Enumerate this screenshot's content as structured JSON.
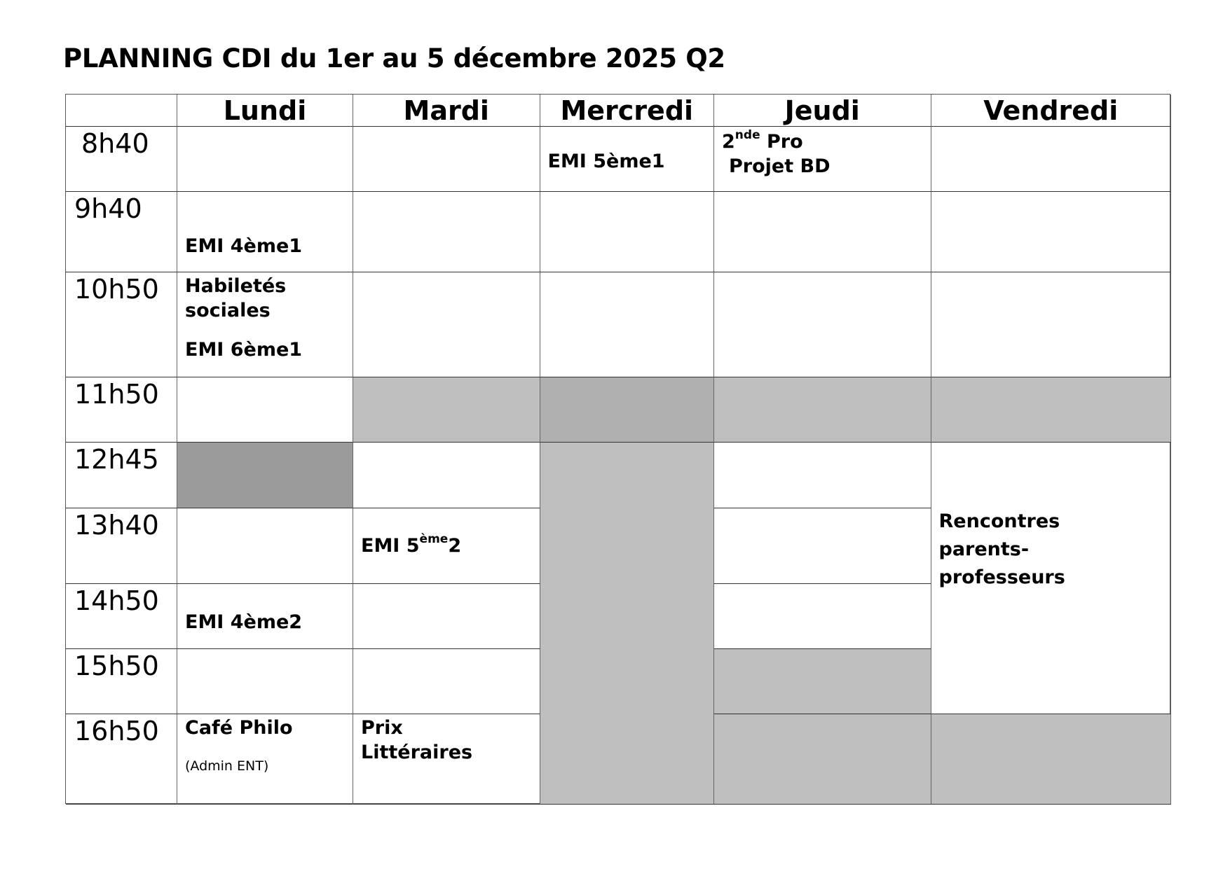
{
  "title": "PLANNING CDI du 1er au 5 décembre 2025 Q2",
  "days": [
    "Lundi",
    "Mardi",
    "Mercredi",
    "Jeudi",
    "Vendredi"
  ],
  "times": [
    "8h40",
    "9h40",
    "10h50",
    "11h50",
    "12h45",
    "13h40",
    "14h50",
    "15h50",
    "16h50"
  ],
  "events": {
    "mer_0840": "EMI 5ème1",
    "jeu_0840_a": "2",
    "jeu_0840_sup": "nde",
    "jeu_0840_b": " Pro",
    "jeu_0840_c": "Projet BD",
    "lun_0940": "EMI 4ème1",
    "lun_1050_a": "Habiletés",
    "lun_1050_b": "sociales",
    "lun_1050_c": "EMI 6ème1",
    "mar_1340_a": "EMI 5",
    "mar_1340_sup": "ème",
    "mar_1340_b": "2",
    "lun_1450": "EMI 4ème2",
    "ven_rencontres_a": "Rencontres",
    "ven_rencontres_b": "parents-",
    "ven_rencontres_c": "professeurs",
    "lun_1650": "Café Philo",
    "lun_1650_note": "(Admin ENT)",
    "mar_1650_a": "Prix",
    "mar_1650_b": "Littéraires"
  },
  "colors": {
    "closed": "#bfbfbf",
    "closed_dark": "#b0b0b0",
    "lunch": "#9b9b9b"
  }
}
